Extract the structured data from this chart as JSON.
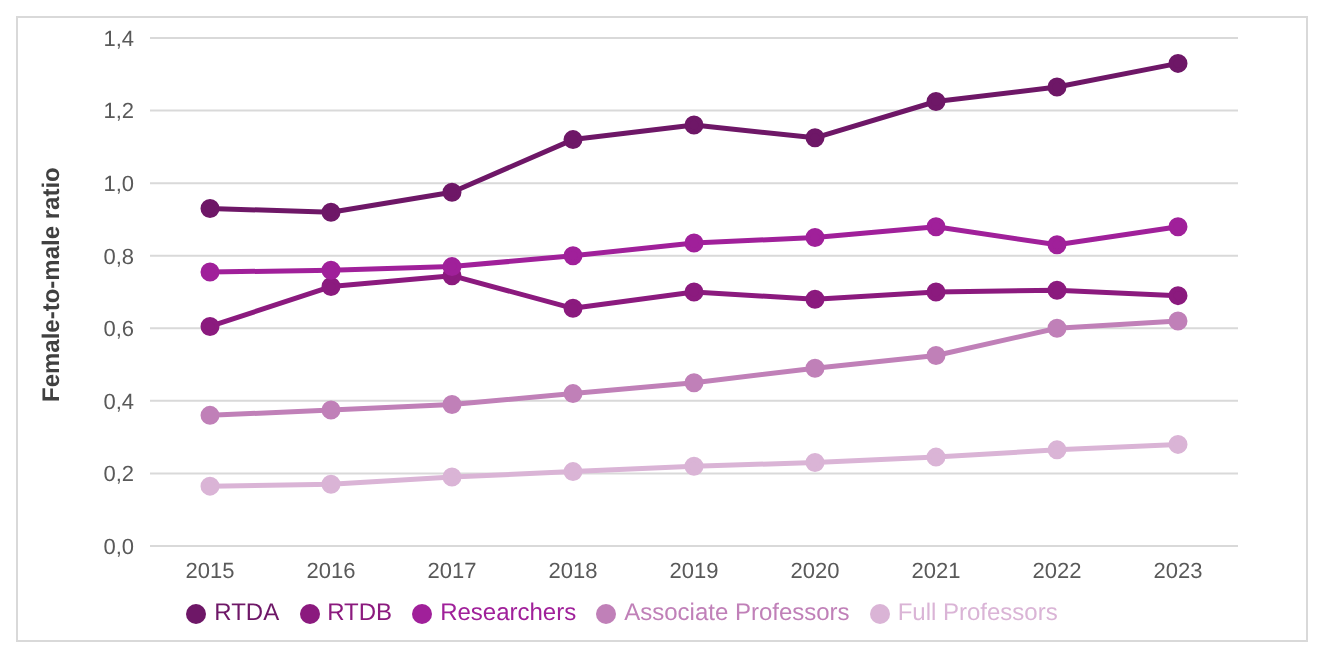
{
  "chart_data": {
    "type": "line",
    "ylabel": "Female-to-male ratio",
    "categories": [
      "2015",
      "2016",
      "2017",
      "2018",
      "2019",
      "2020",
      "2021",
      "2022",
      "2023"
    ],
    "series": [
      {
        "name": "RTDA",
        "color": "#6e1767",
        "values": [
          0.93,
          0.92,
          0.975,
          1.12,
          1.16,
          1.125,
          1.225,
          1.265,
          1.33
        ]
      },
      {
        "name": "RTDB",
        "color": "#8b1a7e",
        "values": [
          0.605,
          0.715,
          0.745,
          0.655,
          0.7,
          0.68,
          0.7,
          0.705,
          0.69
        ]
      },
      {
        "name": "Researchers",
        "color": "#a0209a",
        "values": [
          0.755,
          0.76,
          0.77,
          0.8,
          0.835,
          0.85,
          0.88,
          0.83,
          0.88
        ]
      },
      {
        "name": "Associate Professors",
        "color": "#c080b8",
        "values": [
          0.36,
          0.375,
          0.39,
          0.42,
          0.45,
          0.49,
          0.525,
          0.6,
          0.62
        ]
      },
      {
        "name": "Full Professors",
        "color": "#dab4d6",
        "values": [
          0.165,
          0.17,
          0.19,
          0.205,
          0.22,
          0.23,
          0.245,
          0.265,
          0.28
        ]
      }
    ],
    "ylim": [
      0,
      1.4
    ],
    "yticks": [
      {
        "value": 0,
        "label": "0,0"
      },
      {
        "value": 0.2,
        "label": "0,2"
      },
      {
        "value": 0.4,
        "label": "0,4"
      },
      {
        "value": 0.6,
        "label": "0,6"
      },
      {
        "value": 0.8,
        "label": "0,8"
      },
      {
        "value": 1.0,
        "label": "1,0"
      },
      {
        "value": 1.2,
        "label": "1,2"
      },
      {
        "value": 1.4,
        "label": "1,4"
      }
    ],
    "grid": "y",
    "legend": "bottom",
    "marker": "circle",
    "line_style": "solid"
  }
}
